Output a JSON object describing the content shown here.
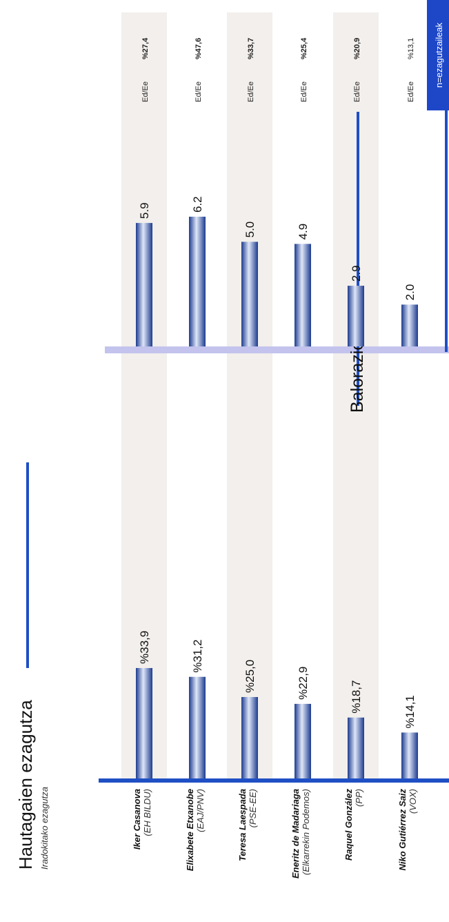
{
  "chart_data": [
    {
      "type": "bar",
      "title": "Hautagaien ezagutza",
      "subtitle": "Iradokitako ezagutza",
      "categories": [
        {
          "name": "Iker Casanova",
          "party": "(EH BILDU)"
        },
        {
          "name": "Elixabete Etxanobe",
          "party": "(EAJ/PNV)"
        },
        {
          "name": "Teresa Laespada",
          "party": "(PSE-EE)"
        },
        {
          "name": "Eneritz de Madariaga",
          "party": "(Elkarrekin Podemos)"
        },
        {
          "name": "Raquel González",
          "party": "(PP)"
        },
        {
          "name": "Niko Gutiérrez Saiz",
          "party": "(VOX)"
        }
      ],
      "values": [
        33.9,
        31.2,
        25.0,
        22.9,
        18.7,
        14.1
      ],
      "labels": [
        "%33,9",
        "%31,2",
        "%25,0",
        "%22,9",
        "%18,7",
        "%14,1"
      ]
    },
    {
      "type": "bar",
      "title": "Balorazioa",
      "values": [
        5.9,
        6.2,
        5.0,
        4.9,
        2.9,
        2.0
      ],
      "labels": [
        "5.9",
        "6.2",
        "5.0",
        "4.9",
        "2.9",
        "2.0"
      ]
    },
    {
      "type": "table",
      "header": "n=ezagutzaileak",
      "row_label": "Ed/Ee",
      "values": [
        "%27,4",
        "%47,6",
        "%33,7",
        "%25,4",
        "%20,9",
        "%13,1"
      ]
    }
  ],
  "colors": {
    "bar_dark": "#2b4aa3",
    "bar_light": "#e6ecfa",
    "axis_blue": "#1f4fc4",
    "baseline_lavender": "#c3c3ee",
    "stripe": "#f2efec",
    "header_bg": "#1e47c8"
  }
}
